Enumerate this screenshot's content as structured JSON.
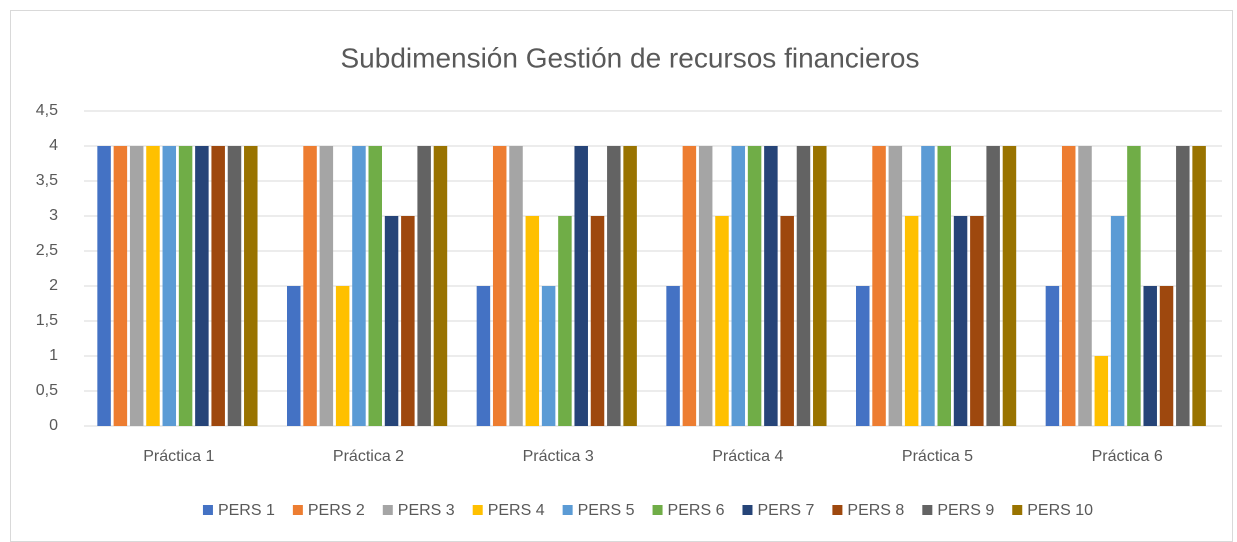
{
  "chart_data": {
    "type": "bar",
    "title": "Subdimensión Gestión de recursos financieros",
    "categories": [
      "Práctica 1",
      "Práctica 2",
      "Práctica 3",
      "Práctica 4",
      "Práctica 5",
      "Práctica 6"
    ],
    "series": [
      {
        "name": "PERS 1",
        "color": "#4472c4",
        "values": [
          4,
          2,
          2,
          2,
          2,
          2
        ]
      },
      {
        "name": "PERS 2",
        "color": "#ed7d31",
        "values": [
          4,
          4,
          4,
          4,
          4,
          4
        ]
      },
      {
        "name": "PERS 3",
        "color": "#a5a5a5",
        "values": [
          4,
          4,
          4,
          4,
          4,
          4
        ]
      },
      {
        "name": "PERS 4",
        "color": "#ffc000",
        "values": [
          4,
          2,
          3,
          3,
          3,
          1
        ]
      },
      {
        "name": "PERS 5",
        "color": "#5b9bd5",
        "values": [
          4,
          4,
          2,
          4,
          4,
          3
        ]
      },
      {
        "name": "PERS 6",
        "color": "#70ad47",
        "values": [
          4,
          4,
          3,
          4,
          4,
          4
        ]
      },
      {
        "name": "PERS 7",
        "color": "#264478",
        "values": [
          4,
          3,
          4,
          4,
          3,
          2
        ]
      },
      {
        "name": "PERS 8",
        "color": "#9e480e",
        "values": [
          4,
          3,
          3,
          3,
          3,
          2
        ]
      },
      {
        "name": "PERS 9",
        "color": "#636363",
        "values": [
          4,
          4,
          4,
          4,
          4,
          4
        ]
      },
      {
        "name": "PERS 10",
        "color": "#997300",
        "values": [
          4,
          4,
          4,
          4,
          4,
          4
        ]
      }
    ],
    "ylim": [
      0,
      4.5
    ],
    "yticks": [
      0,
      {
        "value": 0.5,
        "label": "0,5"
      },
      1,
      {
        "value": 1.5,
        "label": "1,5"
      },
      2,
      {
        "value": 2.5,
        "label": "2,5"
      },
      3,
      {
        "value": 3.5,
        "label": "3,5"
      },
      4,
      {
        "value": 4.5,
        "label": "4,5"
      }
    ],
    "grid": true,
    "legend": "bottom"
  }
}
